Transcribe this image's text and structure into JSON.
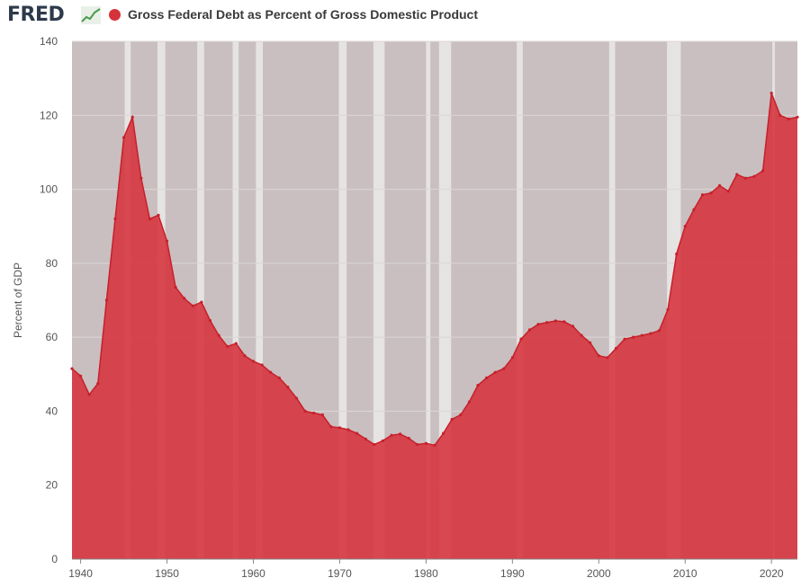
{
  "header": {
    "logo_text": "FRED",
    "logo_icon": "line-chart-icon",
    "title": "Gross Federal Debt as Percent of Gross Domestic Product"
  },
  "colors": {
    "series": "#d6323c",
    "series_line": "#c8202a",
    "recession": "#e6e3e3",
    "plot_bg": "#c9bfc0",
    "gridline": "#ddd6d6"
  },
  "chart_data": {
    "type": "area",
    "title": "Gross Federal Debt as Percent of Gross Domestic Product",
    "xlabel": "",
    "ylabel": "Percent of GDP",
    "xlim": [
      1939,
      2023
    ],
    "ylim": [
      0,
      140
    ],
    "yticks": [
      0,
      20,
      40,
      60,
      80,
      100,
      120,
      140
    ],
    "xticks": [
      1940,
      1950,
      1960,
      1970,
      1980,
      1990,
      2000,
      2010,
      2020
    ],
    "grid": true,
    "series": [
      {
        "name": "Gross Federal Debt as Percent of Gross Domestic Product",
        "x": [
          1939,
          1940,
          1941,
          1942,
          1943,
          1944,
          1945,
          1946,
          1947,
          1948,
          1949,
          1950,
          1951,
          1952,
          1953,
          1954,
          1955,
          1956,
          1957,
          1958,
          1959,
          1960,
          1961,
          1962,
          1963,
          1964,
          1965,
          1966,
          1967,
          1968,
          1969,
          1970,
          1971,
          1972,
          1973,
          1974,
          1975,
          1976,
          1977,
          1978,
          1979,
          1980,
          1981,
          1982,
          1983,
          1984,
          1985,
          1986,
          1987,
          1988,
          1989,
          1990,
          1991,
          1992,
          1993,
          1994,
          1995,
          1996,
          1997,
          1998,
          1999,
          2000,
          2001,
          2002,
          2003,
          2004,
          2005,
          2006,
          2007,
          2008,
          2009,
          2010,
          2011,
          2012,
          2013,
          2014,
          2015,
          2016,
          2017,
          2018,
          2019,
          2020,
          2021,
          2022,
          2023
        ],
        "y": [
          51.5,
          49.5,
          44.5,
          47.5,
          70,
          92,
          114,
          119.5,
          103,
          92,
          93,
          86,
          73.5,
          70.5,
          68.5,
          69.5,
          64.5,
          60.5,
          57.5,
          58.3,
          55,
          53.5,
          52.5,
          50.5,
          49,
          46.5,
          43.5,
          40,
          39.5,
          39,
          35.8,
          35.5,
          35,
          34,
          32.5,
          31,
          32,
          33.5,
          33.8,
          32.7,
          31,
          31.3,
          30.8,
          34,
          37.8,
          39,
          42.5,
          47,
          49,
          50.5,
          51.5,
          54.5,
          59.5,
          62,
          63.5,
          64,
          64.4,
          64.2,
          63,
          60.5,
          58.5,
          55,
          54.5,
          57,
          59.5,
          60,
          60.5,
          61,
          61.8,
          67.5,
          82.5,
          90,
          94.5,
          98.5,
          99,
          101,
          99.5,
          104,
          103,
          103.5,
          105,
          126,
          120,
          119,
          119.5
        ]
      }
    ],
    "recessions": [
      [
        1945.1,
        1945.8
      ],
      [
        1948.9,
        1949.8
      ],
      [
        1953.5,
        1954.3
      ],
      [
        1957.6,
        1958.3
      ],
      [
        1960.3,
        1961.1
      ],
      [
        1969.9,
        1970.8
      ],
      [
        1973.9,
        1975.2
      ],
      [
        1980.0,
        1980.5
      ],
      [
        1981.5,
        1982.9
      ],
      [
        1990.5,
        1991.2
      ],
      [
        2001.2,
        2001.9
      ],
      [
        2007.9,
        2009.5
      ],
      [
        2020.1,
        2020.4
      ]
    ]
  }
}
